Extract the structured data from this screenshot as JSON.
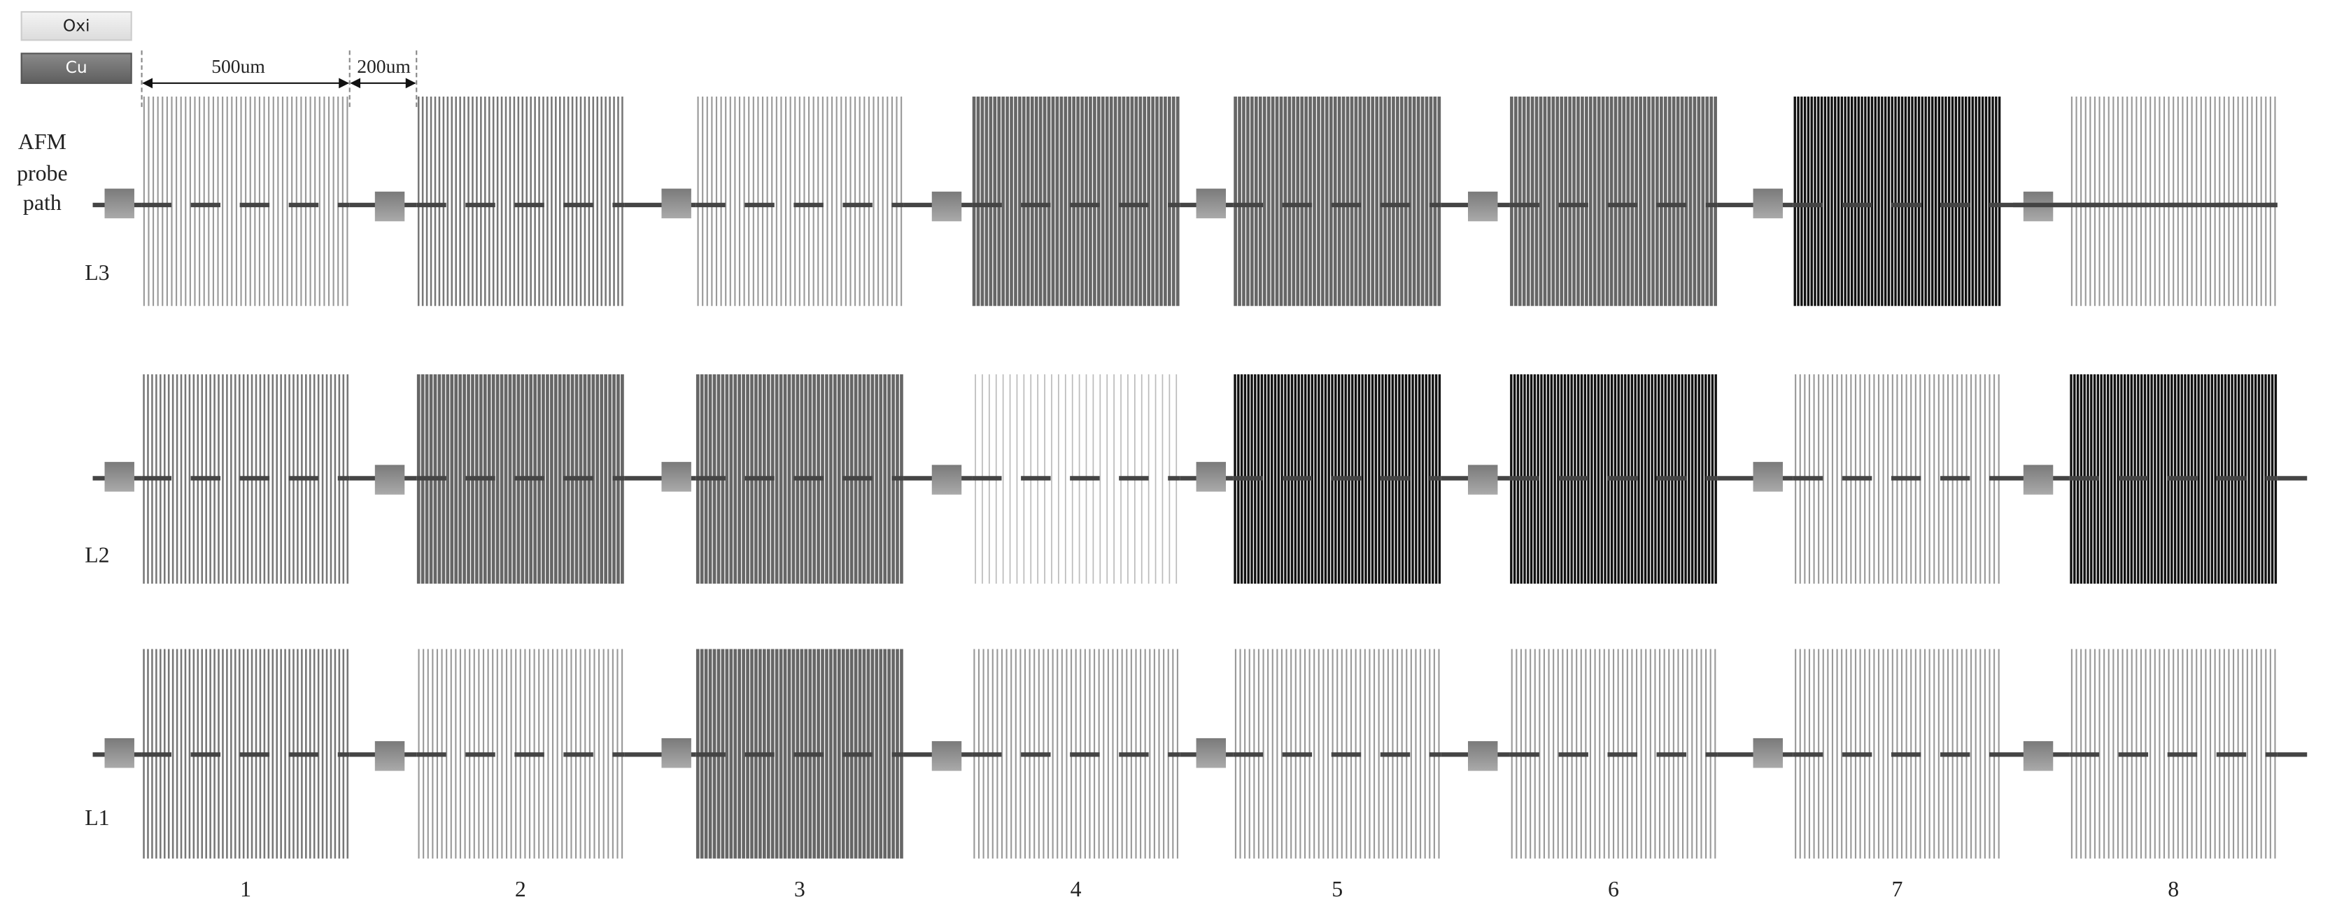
{
  "legend": {
    "items": [
      "Oxi",
      "Cu"
    ]
  },
  "dimensions": {
    "width_label": "500um",
    "gap_label": "200um"
  },
  "probe_label": {
    "lines": [
      "AFM",
      "probe",
      "path"
    ]
  },
  "rows": [
    "L3",
    "L2",
    "L1"
  ],
  "columns": [
    "1",
    "2",
    "3",
    "4",
    "5",
    "6",
    "7",
    "8"
  ]
}
